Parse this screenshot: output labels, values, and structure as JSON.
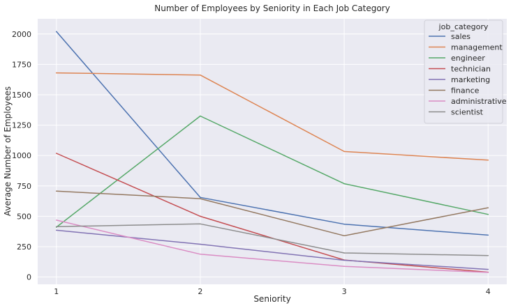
{
  "chart_data": {
    "type": "line",
    "title": "Number of Employees by Seniority in Each Job Category",
    "xlabel": "Seniority",
    "ylabel": "Average Number of Employees",
    "x": [
      1,
      2,
      3,
      4
    ],
    "x_ticks": [
      "1",
      "2",
      "3",
      "4"
    ],
    "y_ticks": [
      "0",
      "250",
      "500",
      "750",
      "1000",
      "1250",
      "1500",
      "1750",
      "2000"
    ],
    "xlim": [
      0.87,
      4.13
    ],
    "ylim": [
      -60,
      2125
    ],
    "grid": true,
    "background": "#eaeaf2",
    "legend": {
      "title": "job_category",
      "placement": "top-right"
    },
    "series": [
      {
        "name": "sales",
        "color": "#4c72b0",
        "values": [
          2020,
          655,
          435,
          345
        ]
      },
      {
        "name": "management",
        "color": "#dd8452",
        "values": [
          1680,
          1662,
          1033,
          962
        ]
      },
      {
        "name": "engineer",
        "color": "#55a868",
        "values": [
          410,
          1325,
          768,
          515
        ]
      },
      {
        "name": "technician",
        "color": "#c44e52",
        "values": [
          1018,
          500,
          140,
          40
        ]
      },
      {
        "name": "marketing",
        "color": "#8172b3",
        "values": [
          385,
          270,
          138,
          63
        ]
      },
      {
        "name": "finance",
        "color": "#937860",
        "values": [
          707,
          645,
          340,
          570
        ]
      },
      {
        "name": "administrative",
        "color": "#da8bc3",
        "values": [
          468,
          188,
          88,
          38
        ]
      },
      {
        "name": "scientist",
        "color": "#8c8c8c",
        "values": [
          415,
          437,
          198,
          177
        ]
      }
    ]
  }
}
